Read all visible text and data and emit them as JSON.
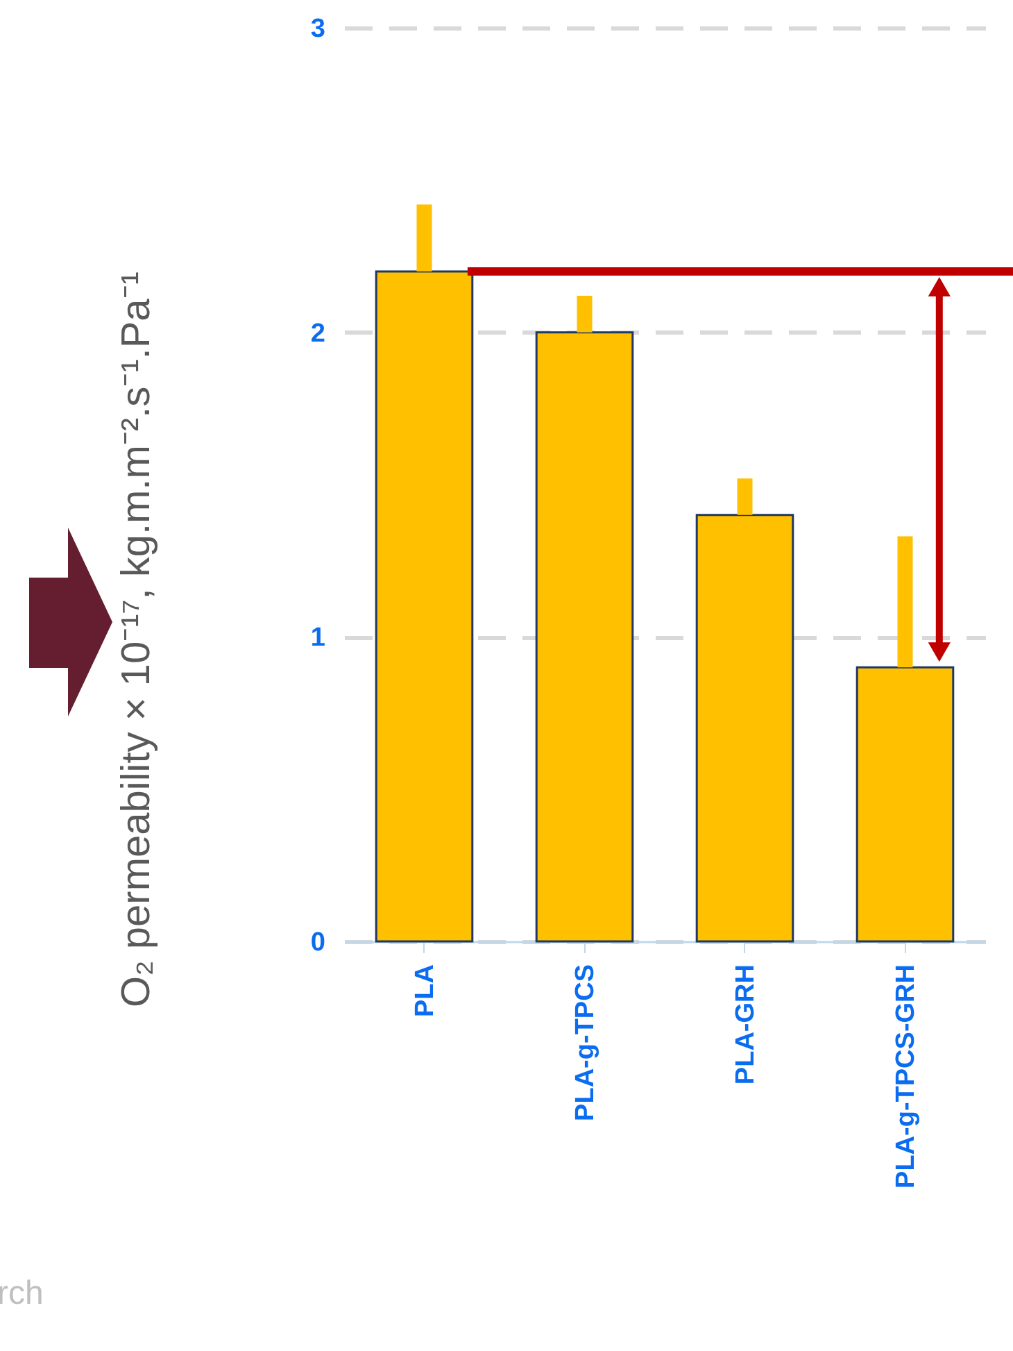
{
  "chart_data": {
    "type": "bar",
    "ylabel": "O₂ permeability × 10⁻¹⁷, kg.m.m⁻².s⁻¹.Pa⁻¹",
    "categories": [
      "PLA",
      "PLA-g-TPCS",
      "PLA-GRH",
      "PLA-g-TPCS-GRH"
    ],
    "values": [
      2.2,
      2.0,
      1.4,
      0.9
    ],
    "color": "#ffc000",
    "errors": [
      [
        2.2,
        2.42
      ],
      [
        2.0,
        2.12
      ],
      [
        1.4,
        1.52
      ],
      [
        0.9,
        1.33
      ]
    ],
    "ylim": [
      0,
      3
    ],
    "yticks": [
      0,
      1,
      2,
      3
    ],
    "grid": "y",
    "ref_lines": [
      {
        "axis": "y",
        "value": 2.2,
        "color": "#c00000"
      }
    ],
    "annotations": [
      "rch"
    ]
  }
}
